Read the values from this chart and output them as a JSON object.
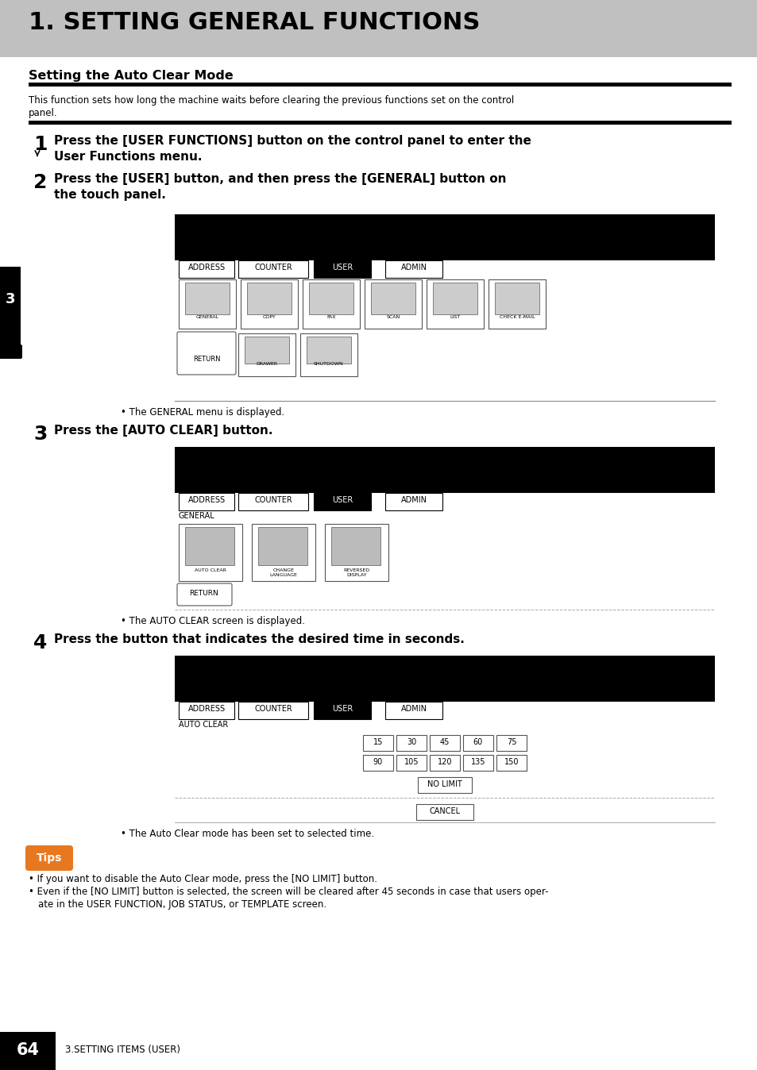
{
  "page_bg": "#ffffff",
  "header_bg": "#c0c0c0",
  "header_text": "1. SETTING GENERAL FUNCTIONS",
  "section_title": "Setting the Auto Clear Mode",
  "section_desc_line1": "This function sets how long the machine waits before clearing the previous functions set on the control",
  "section_desc_line2": "panel.",
  "step1_num": "1",
  "step1_line1": "Press the [USER FUNCTIONS] button on the control panel to enter the",
  "step1_line2": "User Functions menu.",
  "step2_num": "2",
  "step2_line1": "Press the [USER] button, and then press the [GENERAL] button on",
  "step2_line2": "the touch panel.",
  "step2_note": "The GENERAL menu is displayed.",
  "step3_num": "3",
  "step3_text": "Press the [AUTO CLEAR] button.",
  "step3_note": "The AUTO CLEAR screen is displayed.",
  "step4_num": "4",
  "step4_text": "Press the button that indicates the desired time in seconds.",
  "step4_note": "The Auto Clear mode has been set to selected time.",
  "tips_label": "Tips",
  "tips_line1": "If you want to disable the Auto Clear mode, press the [NO LIMIT] button.",
  "tips_line2a": "Even if the [NO LIMIT] button is selected, the screen will be cleared after 45 seconds in case that users oper-",
  "tips_line2b": "ate in the USER FUNCTION, JOB STATUS, or TEMPLATE screen.",
  "footer_page": "64",
  "footer_text": "3.SETTING ITEMS (USER)",
  "sidebar_num": "3",
  "tab_labels": [
    "ADDRESS",
    "COUNTER",
    "USER",
    "ADMIN"
  ],
  "screen1_row1": [
    "GENERAL",
    "COPY",
    "FAX",
    "SCAN",
    "LIST",
    "CHECK E-MAIL"
  ],
  "screen1_row2_icons": [
    "DRAWER",
    "SHUTDOWN"
  ],
  "screen2_icons": [
    "AUTO CLEAR",
    "CHANGE\nLANGUAGE",
    "REVERSED\nDISPLAY"
  ],
  "time_row1": [
    "15",
    "30",
    "45",
    "60",
    "75"
  ],
  "time_row2": [
    "90",
    "105",
    "120",
    "135",
    "150"
  ],
  "no_limit_label": "NO LIMIT",
  "cancel_label": "CANCEL"
}
